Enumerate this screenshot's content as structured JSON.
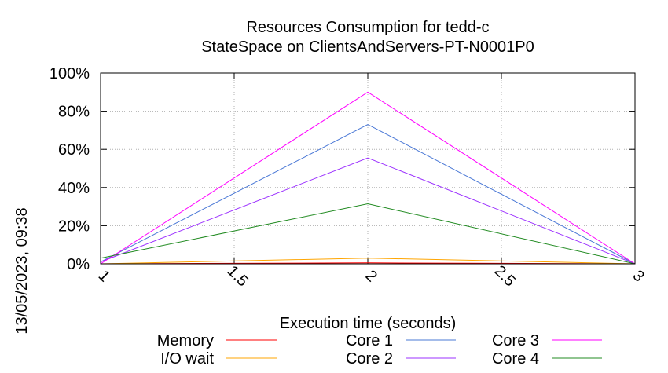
{
  "chart_data": {
    "type": "line",
    "title": [
      "Resources Consumption for tedd-c",
      "StateSpace on ClientsAndServers-PT-N0001P0"
    ],
    "xlabel": "Execution time (seconds)",
    "ylabel": "",
    "timestamp": "13/05/2023, 09:38",
    "x": [
      1,
      2,
      3
    ],
    "xlim": [
      1,
      3
    ],
    "ylim": [
      0,
      100
    ],
    "x_ticks": [
      1,
      1.5,
      2,
      2.5,
      3
    ],
    "x_tick_labels": [
      "1",
      "1.5",
      "2",
      "2.5",
      "3"
    ],
    "y_ticks": [
      0,
      20,
      40,
      60,
      80,
      100
    ],
    "y_tick_labels": [
      "0%",
      "20%",
      "40%",
      "60%",
      "80%",
      "100%"
    ],
    "grid": true,
    "legend_position": "bottom",
    "series": [
      {
        "name": "Memory",
        "color": "#ff0000",
        "values": [
          0,
          0.5,
          0
        ]
      },
      {
        "name": "I/O wait",
        "color": "#ffa500",
        "values": [
          0,
          3,
          0
        ]
      },
      {
        "name": "Core 1",
        "color": "#4a78d6",
        "values": [
          1,
          73,
          0
        ]
      },
      {
        "name": "Core 2",
        "color": "#9b30ff",
        "values": [
          1,
          55.5,
          0
        ]
      },
      {
        "name": "Core 3",
        "color": "#ff00ff",
        "values": [
          0,
          90,
          0
        ]
      },
      {
        "name": "Core 4",
        "color": "#228b22",
        "values": [
          3,
          31.5,
          0
        ]
      }
    ]
  }
}
